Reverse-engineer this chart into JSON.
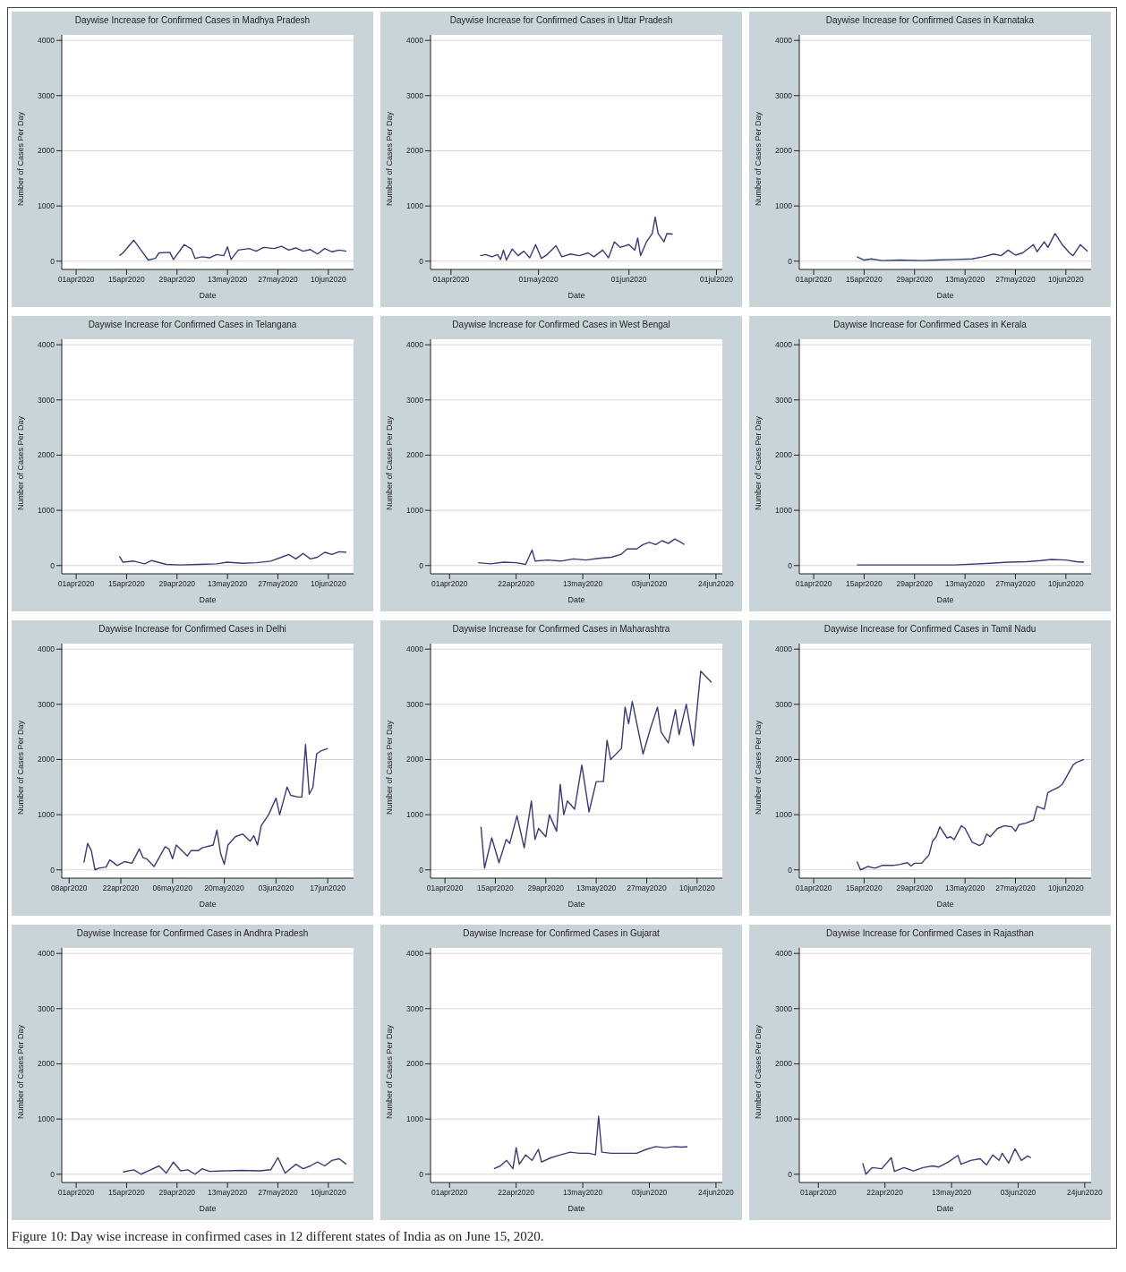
{
  "chart_data": [
    {
      "type": "line",
      "title": "Daywise Increase for Confirmed Cases in Madhya Pradesh",
      "xlabel": "Date",
      "ylabel": "Number of Cases Per Day",
      "color": "#3b3a78",
      "grid": "y",
      "ylim": [
        -150,
        4100
      ],
      "yticks": [
        0,
        1000,
        2000,
        3000,
        4000
      ],
      "xlim": [
        "2020-03-28",
        "2020-06-17"
      ],
      "xticks": [
        {
          "value": "2020-04-01",
          "label": "01apr2020"
        },
        {
          "value": "2020-04-15",
          "label": "15apr2020"
        },
        {
          "value": "2020-04-29",
          "label": "29apr2020"
        },
        {
          "value": "2020-05-13",
          "label": "13may2020"
        },
        {
          "value": "2020-05-27",
          "label": "27may2020"
        },
        {
          "value": "2020-06-10",
          "label": "10jun2020"
        }
      ],
      "x": [
        "2020-04-13",
        "2020-04-14",
        "2020-04-17",
        "2020-04-19",
        "2020-04-21",
        "2020-04-23",
        "2020-04-24",
        "2020-04-27",
        "2020-04-28",
        "2020-05-01",
        "2020-05-03",
        "2020-05-04",
        "2020-05-06",
        "2020-05-08",
        "2020-05-10",
        "2020-05-12",
        "2020-05-13",
        "2020-05-14",
        "2020-05-16",
        "2020-05-19",
        "2020-05-21",
        "2020-05-23",
        "2020-05-26",
        "2020-05-28",
        "2020-05-30",
        "2020-06-01",
        "2020-06-03",
        "2020-06-05",
        "2020-06-07",
        "2020-06-09",
        "2020-06-11",
        "2020-06-13",
        "2020-06-15"
      ],
      "values": [
        100,
        150,
        380,
        200,
        20,
        50,
        150,
        160,
        30,
        300,
        220,
        50,
        80,
        60,
        120,
        100,
        260,
        30,
        200,
        230,
        180,
        250,
        230,
        270,
        200,
        240,
        180,
        210,
        130,
        230,
        170,
        200,
        180
      ]
    },
    {
      "type": "line",
      "title": "Daywise Increase for Confirmed Cases in Uttar Pradesh",
      "xlabel": "Date",
      "ylabel": "Number of Cases Per Day",
      "color": "#3b3a78",
      "grid": "y",
      "ylim": [
        -150,
        4100
      ],
      "yticks": [
        0,
        1000,
        2000,
        3000,
        4000
      ],
      "xlim": [
        "2020-03-25",
        "2020-07-03"
      ],
      "xticks": [
        {
          "value": "2020-04-01",
          "label": "01apr2020"
        },
        {
          "value": "2020-05-01",
          "label": "01may2020"
        },
        {
          "value": "2020-06-01",
          "label": "01jun2020"
        },
        {
          "value": "2020-07-01",
          "label": "01jul2020"
        }
      ],
      "x": [
        "2020-04-11",
        "2020-04-13",
        "2020-04-15",
        "2020-04-17",
        "2020-04-18",
        "2020-04-19",
        "2020-04-20",
        "2020-04-22",
        "2020-04-24",
        "2020-04-26",
        "2020-04-28",
        "2020-04-30",
        "2020-05-02",
        "2020-05-04",
        "2020-05-07",
        "2020-05-09",
        "2020-05-12",
        "2020-05-15",
        "2020-05-18",
        "2020-05-20",
        "2020-05-23",
        "2020-05-25",
        "2020-05-27",
        "2020-05-29",
        "2020-06-01",
        "2020-06-03",
        "2020-06-04",
        "2020-06-05",
        "2020-06-07",
        "2020-06-09",
        "2020-06-10",
        "2020-06-11",
        "2020-06-13",
        "2020-06-14",
        "2020-06-16"
      ],
      "values": [
        100,
        120,
        80,
        120,
        30,
        200,
        20,
        220,
        100,
        180,
        60,
        300,
        50,
        120,
        280,
        80,
        130,
        100,
        150,
        80,
        200,
        60,
        350,
        250,
        300,
        200,
        420,
        100,
        350,
        500,
        800,
        500,
        350,
        500,
        490
      ]
    },
    {
      "type": "line",
      "title": "Daywise Increase for Confirmed Cases in Karnataka",
      "xlabel": "Date",
      "ylabel": "Number of Cases Per Day",
      "color": "#3b3a78",
      "grid": "y",
      "ylim": [
        -150,
        4100
      ],
      "yticks": [
        0,
        1000,
        2000,
        3000,
        4000
      ],
      "xlim": [
        "2020-03-28",
        "2020-06-17"
      ],
      "xticks": [
        {
          "value": "2020-04-01",
          "label": "01apr2020"
        },
        {
          "value": "2020-04-15",
          "label": "15apr2020"
        },
        {
          "value": "2020-04-29",
          "label": "29apr2020"
        },
        {
          "value": "2020-05-13",
          "label": "13may2020"
        },
        {
          "value": "2020-05-27",
          "label": "27may2020"
        },
        {
          "value": "2020-06-10",
          "label": "10jun2020"
        }
      ],
      "x": [
        "2020-04-13",
        "2020-04-15",
        "2020-04-17",
        "2020-04-20",
        "2020-04-25",
        "2020-05-01",
        "2020-05-05",
        "2020-05-10",
        "2020-05-15",
        "2020-05-18",
        "2020-05-21",
        "2020-05-23",
        "2020-05-25",
        "2020-05-27",
        "2020-05-29",
        "2020-06-01",
        "2020-06-02",
        "2020-06-04",
        "2020-06-05",
        "2020-06-07",
        "2020-06-09",
        "2020-06-11",
        "2020-06-12",
        "2020-06-14",
        "2020-06-16"
      ],
      "values": [
        80,
        20,
        40,
        10,
        20,
        10,
        20,
        30,
        40,
        80,
        130,
        100,
        200,
        110,
        150,
        300,
        170,
        350,
        250,
        500,
        300,
        150,
        100,
        300,
        180
      ]
    },
    {
      "type": "line",
      "title": "Daywise Increase for Confirmed Cases in Telangana",
      "xlabel": "Date",
      "ylabel": "Number of Cases Per Day",
      "color": "#3b3a78",
      "grid": "y",
      "ylim": [
        -150,
        4100
      ],
      "yticks": [
        0,
        1000,
        2000,
        3000,
        4000
      ],
      "xlim": [
        "2020-03-28",
        "2020-06-17"
      ],
      "xticks": [
        {
          "value": "2020-04-01",
          "label": "01apr2020"
        },
        {
          "value": "2020-04-15",
          "label": "15apr2020"
        },
        {
          "value": "2020-04-29",
          "label": "29apr2020"
        },
        {
          "value": "2020-05-13",
          "label": "13may2020"
        },
        {
          "value": "2020-05-27",
          "label": "27may2020"
        },
        {
          "value": "2020-06-10",
          "label": "10jun2020"
        }
      ],
      "x": [
        "2020-04-13",
        "2020-04-14",
        "2020-04-17",
        "2020-04-20",
        "2020-04-22",
        "2020-04-26",
        "2020-04-30",
        "2020-05-05",
        "2020-05-10",
        "2020-05-13",
        "2020-05-17",
        "2020-05-21",
        "2020-05-25",
        "2020-05-28",
        "2020-05-30",
        "2020-06-01",
        "2020-06-03",
        "2020-06-05",
        "2020-06-07",
        "2020-06-09",
        "2020-06-11",
        "2020-06-13",
        "2020-06-15"
      ],
      "values": [
        170,
        60,
        80,
        30,
        90,
        20,
        10,
        20,
        30,
        60,
        40,
        50,
        80,
        150,
        200,
        120,
        220,
        120,
        150,
        240,
        200,
        250,
        240
      ]
    },
    {
      "type": "line",
      "title": "Daywise Increase for Confirmed Cases in West Bengal",
      "xlabel": "Date",
      "ylabel": "Number of Cases Per Day",
      "color": "#3b3a78",
      "grid": "y",
      "ylim": [
        -150,
        4100
      ],
      "yticks": [
        0,
        1000,
        2000,
        3000,
        4000
      ],
      "xlim": [
        "2020-03-26",
        "2020-06-26"
      ],
      "xticks": [
        {
          "value": "2020-04-01",
          "label": "01apr2020"
        },
        {
          "value": "2020-04-22",
          "label": "22apr2020"
        },
        {
          "value": "2020-05-13",
          "label": "13may2020"
        },
        {
          "value": "2020-06-03",
          "label": "03jun2020"
        },
        {
          "value": "2020-06-24",
          "label": "24jun2020"
        }
      ],
      "x": [
        "2020-04-10",
        "2020-04-14",
        "2020-04-18",
        "2020-04-22",
        "2020-04-25",
        "2020-04-27",
        "2020-04-28",
        "2020-05-02",
        "2020-05-06",
        "2020-05-10",
        "2020-05-14",
        "2020-05-18",
        "2020-05-22",
        "2020-05-25",
        "2020-05-27",
        "2020-05-30",
        "2020-06-01",
        "2020-06-03",
        "2020-06-05",
        "2020-06-07",
        "2020-06-09",
        "2020-06-11",
        "2020-06-13",
        "2020-06-14"
      ],
      "values": [
        50,
        30,
        60,
        50,
        20,
        280,
        80,
        100,
        80,
        120,
        100,
        130,
        150,
        200,
        300,
        300,
        380,
        420,
        380,
        450,
        400,
        480,
        420,
        380
      ]
    },
    {
      "type": "line",
      "title": "Daywise Increase for Confirmed Cases in Kerala",
      "xlabel": "Date",
      "ylabel": "Number of Cases Per Day",
      "color": "#3b3a78",
      "grid": "y",
      "ylim": [
        -150,
        4100
      ],
      "yticks": [
        0,
        1000,
        2000,
        3000,
        4000
      ],
      "xlim": [
        "2020-03-28",
        "2020-06-17"
      ],
      "xticks": [
        {
          "value": "2020-04-01",
          "label": "01apr2020"
        },
        {
          "value": "2020-04-15",
          "label": "15apr2020"
        },
        {
          "value": "2020-04-29",
          "label": "29apr2020"
        },
        {
          "value": "2020-05-13",
          "label": "13may2020"
        },
        {
          "value": "2020-05-27",
          "label": "27may2020"
        },
        {
          "value": "2020-06-10",
          "label": "10jun2020"
        }
      ],
      "x": [
        "2020-04-13",
        "2020-04-20",
        "2020-04-30",
        "2020-05-10",
        "2020-05-20",
        "2020-05-25",
        "2020-05-30",
        "2020-06-03",
        "2020-06-06",
        "2020-06-10",
        "2020-06-13",
        "2020-06-15"
      ],
      "values": [
        10,
        10,
        10,
        10,
        40,
        60,
        70,
        90,
        110,
        100,
        70,
        60
      ]
    },
    {
      "type": "line",
      "title": "Daywise Increase for Confirmed Cases in Delhi",
      "xlabel": "Date",
      "ylabel": "Number of Cases Per Day",
      "color": "#3b3a78",
      "grid": "y",
      "ylim": [
        -150,
        4100
      ],
      "yticks": [
        0,
        1000,
        2000,
        3000,
        4000
      ],
      "xlim": [
        "2020-04-06",
        "2020-06-24"
      ],
      "xticks": [
        {
          "value": "2020-04-08",
          "label": "08apr2020"
        },
        {
          "value": "2020-04-22",
          "label": "22apr2020"
        },
        {
          "value": "2020-05-06",
          "label": "06may2020"
        },
        {
          "value": "2020-05-20",
          "label": "20may2020"
        },
        {
          "value": "2020-06-03",
          "label": "03jun2020"
        },
        {
          "value": "2020-06-17",
          "label": "17jun2020"
        }
      ],
      "x": [
        "2020-04-12",
        "2020-04-13",
        "2020-04-14",
        "2020-04-15",
        "2020-04-16",
        "2020-04-18",
        "2020-04-19",
        "2020-04-21",
        "2020-04-23",
        "2020-04-25",
        "2020-04-27",
        "2020-04-28",
        "2020-04-29",
        "2020-05-01",
        "2020-05-04",
        "2020-05-05",
        "2020-05-06",
        "2020-05-07",
        "2020-05-10",
        "2020-05-11",
        "2020-05-13",
        "2020-05-14",
        "2020-05-17",
        "2020-05-18",
        "2020-05-19",
        "2020-05-20",
        "2020-05-21",
        "2020-05-23",
        "2020-05-25",
        "2020-05-27",
        "2020-05-28",
        "2020-05-29",
        "2020-05-30",
        "2020-06-01",
        "2020-06-03",
        "2020-06-04",
        "2020-06-06",
        "2020-06-07",
        "2020-06-09",
        "2020-06-10",
        "2020-06-11",
        "2020-06-12",
        "2020-06-13",
        "2020-06-14",
        "2020-06-15",
        "2020-06-17"
      ],
      "values": [
        130,
        480,
        350,
        0,
        30,
        50,
        180,
        80,
        150,
        120,
        380,
        220,
        200,
        60,
        420,
        380,
        200,
        450,
        250,
        350,
        350,
        400,
        450,
        720,
        300,
        100,
        450,
        600,
        650,
        520,
        620,
        450,
        800,
        1000,
        1300,
        1000,
        1500,
        1350,
        1320,
        1320,
        2270,
        1370,
        1500,
        2100,
        2150,
        2200
      ]
    },
    {
      "type": "line",
      "title": "Daywise Increase for Confirmed Cases in Maharashtra",
      "xlabel": "Date",
      "ylabel": "Number of Cases Per Day",
      "color": "#3b3a78",
      "grid": "y",
      "ylim": [
        -150,
        4100
      ],
      "yticks": [
        0,
        1000,
        2000,
        3000,
        4000
      ],
      "xlim": [
        "2020-03-28",
        "2020-06-17"
      ],
      "xticks": [
        {
          "value": "2020-04-01",
          "label": "01apr2020"
        },
        {
          "value": "2020-04-15",
          "label": "15apr2020"
        },
        {
          "value": "2020-04-29",
          "label": "29apr2020"
        },
        {
          "value": "2020-05-13",
          "label": "13may2020"
        },
        {
          "value": "2020-05-27",
          "label": "27may2020"
        },
        {
          "value": "2020-06-10",
          "label": "10jun2020"
        }
      ],
      "x": [
        "2020-04-11",
        "2020-04-12",
        "2020-04-14",
        "2020-04-16",
        "2020-04-18",
        "2020-04-19",
        "2020-04-21",
        "2020-04-23",
        "2020-04-25",
        "2020-04-26",
        "2020-04-27",
        "2020-04-29",
        "2020-04-30",
        "2020-05-02",
        "2020-05-03",
        "2020-05-04",
        "2020-05-05",
        "2020-05-07",
        "2020-05-09",
        "2020-05-11",
        "2020-05-13",
        "2020-05-15",
        "2020-05-16",
        "2020-05-17",
        "2020-05-20",
        "2020-05-21",
        "2020-05-22",
        "2020-05-23",
        "2020-05-26",
        "2020-05-28",
        "2020-05-30",
        "2020-05-31",
        "2020-06-02",
        "2020-06-04",
        "2020-06-05",
        "2020-06-07",
        "2020-06-09",
        "2020-06-11",
        "2020-06-14"
      ],
      "values": [
        780,
        30,
        580,
        130,
        550,
        480,
        980,
        400,
        1250,
        550,
        750,
        600,
        1000,
        700,
        1550,
        1000,
        1250,
        1100,
        1900,
        1050,
        1600,
        1600,
        2350,
        2000,
        2200,
        2950,
        2650,
        3050,
        2100,
        2550,
        2950,
        2500,
        2300,
        2900,
        2450,
        3000,
        2250,
        3600,
        3400
      ]
    },
    {
      "type": "line",
      "title": "Daywise Increase for Confirmed Cases in Tamil Nadu",
      "xlabel": "Date",
      "ylabel": "Number of Cases Per Day",
      "color": "#3b3a78",
      "grid": "y",
      "ylim": [
        -150,
        4100
      ],
      "yticks": [
        0,
        1000,
        2000,
        3000,
        4000
      ],
      "xlim": [
        "2020-03-28",
        "2020-06-17"
      ],
      "xticks": [
        {
          "value": "2020-04-01",
          "label": "01apr2020"
        },
        {
          "value": "2020-04-15",
          "label": "15apr2020"
        },
        {
          "value": "2020-04-29",
          "label": "29apr2020"
        },
        {
          "value": "2020-05-13",
          "label": "13may2020"
        },
        {
          "value": "2020-05-27",
          "label": "27may2020"
        },
        {
          "value": "2020-06-10",
          "label": "10jun2020"
        }
      ],
      "x": [
        "2020-04-13",
        "2020-04-14",
        "2020-04-16",
        "2020-04-18",
        "2020-04-20",
        "2020-04-23",
        "2020-04-25",
        "2020-04-27",
        "2020-04-28",
        "2020-04-29",
        "2020-05-01",
        "2020-05-02",
        "2020-05-03",
        "2020-05-04",
        "2020-05-05",
        "2020-05-06",
        "2020-05-08",
        "2020-05-09",
        "2020-05-10",
        "2020-05-12",
        "2020-05-13",
        "2020-05-15",
        "2020-05-17",
        "2020-05-18",
        "2020-05-19",
        "2020-05-20",
        "2020-05-22",
        "2020-05-24",
        "2020-05-26",
        "2020-05-27",
        "2020-05-28",
        "2020-05-30",
        "2020-06-01",
        "2020-06-02",
        "2020-06-04",
        "2020-06-05",
        "2020-06-08",
        "2020-06-09",
        "2020-06-12",
        "2020-06-13",
        "2020-06-15"
      ],
      "values": [
        150,
        0,
        60,
        30,
        80,
        80,
        100,
        130,
        70,
        120,
        120,
        200,
        270,
        520,
        600,
        780,
        580,
        600,
        550,
        800,
        750,
        500,
        440,
        480,
        650,
        600,
        750,
        800,
        780,
        700,
        820,
        850,
        900,
        1150,
        1100,
        1400,
        1500,
        1550,
        1900,
        1950,
        2000
      ]
    },
    {
      "type": "line",
      "title": "Daywise Increase for Confirmed Cases in Andhra Pradesh",
      "xlabel": "Date",
      "ylabel": "Number of Cases Per Day",
      "color": "#3b3a78",
      "grid": "y",
      "ylim": [
        -150,
        4100
      ],
      "yticks": [
        0,
        1000,
        2000,
        3000,
        4000
      ],
      "xlim": [
        "2020-03-28",
        "2020-06-17"
      ],
      "xticks": [
        {
          "value": "2020-04-01",
          "label": "01apr2020"
        },
        {
          "value": "2020-04-15",
          "label": "15apr2020"
        },
        {
          "value": "2020-04-29",
          "label": "29apr2020"
        },
        {
          "value": "2020-05-13",
          "label": "13may2020"
        },
        {
          "value": "2020-05-27",
          "label": "27may2020"
        },
        {
          "value": "2020-06-10",
          "label": "10jun2020"
        }
      ],
      "x": [
        "2020-04-14",
        "2020-04-17",
        "2020-04-19",
        "2020-04-21",
        "2020-04-24",
        "2020-04-26",
        "2020-04-28",
        "2020-04-30",
        "2020-05-02",
        "2020-05-04",
        "2020-05-06",
        "2020-05-08",
        "2020-05-12",
        "2020-05-17",
        "2020-05-22",
        "2020-05-25",
        "2020-05-27",
        "2020-05-29",
        "2020-06-01",
        "2020-06-03",
        "2020-06-05",
        "2020-06-07",
        "2020-06-09",
        "2020-06-11",
        "2020-06-13",
        "2020-06-15"
      ],
      "values": [
        40,
        80,
        0,
        60,
        150,
        20,
        220,
        60,
        80,
        0,
        100,
        50,
        60,
        70,
        60,
        80,
        300,
        20,
        180,
        100,
        150,
        220,
        150,
        250,
        280,
        180
      ]
    },
    {
      "type": "line",
      "title": "Daywise Increase for Confirmed Cases in Gujarat",
      "xlabel": "Date",
      "ylabel": "Number of Cases Per Day",
      "color": "#3b3a78",
      "grid": "y",
      "ylim": [
        -150,
        4100
      ],
      "yticks": [
        0,
        1000,
        2000,
        3000,
        4000
      ],
      "xlim": [
        "2020-03-26",
        "2020-06-26"
      ],
      "xticks": [
        {
          "value": "2020-04-01",
          "label": "01apr2020"
        },
        {
          "value": "2020-04-22",
          "label": "22apr2020"
        },
        {
          "value": "2020-05-13",
          "label": "13may2020"
        },
        {
          "value": "2020-06-03",
          "label": "03jun2020"
        },
        {
          "value": "2020-06-24",
          "label": "24jun2020"
        }
      ],
      "x": [
        "2020-04-15",
        "2020-04-17",
        "2020-04-19",
        "2020-04-21",
        "2020-04-22",
        "2020-04-23",
        "2020-04-25",
        "2020-04-27",
        "2020-04-29",
        "2020-04-30",
        "2020-05-03",
        "2020-05-06",
        "2020-05-09",
        "2020-05-12",
        "2020-05-15",
        "2020-05-17",
        "2020-05-18",
        "2020-05-19",
        "2020-05-22",
        "2020-05-26",
        "2020-05-30",
        "2020-06-02",
        "2020-06-05",
        "2020-06-08",
        "2020-06-11",
        "2020-06-13",
        "2020-06-15"
      ],
      "values": [
        100,
        150,
        250,
        100,
        480,
        180,
        350,
        250,
        450,
        220,
        300,
        350,
        400,
        380,
        380,
        350,
        1050,
        400,
        380,
        380,
        380,
        450,
        500,
        480,
        500,
        490,
        500
      ]
    },
    {
      "type": "line",
      "title": "Daywise Increase for Confirmed Cases in Rajasthan",
      "xlabel": "Date",
      "ylabel": "Number of Cases Per Day",
      "color": "#3b3a78",
      "grid": "y",
      "ylim": [
        -150,
        4100
      ],
      "yticks": [
        0,
        1000,
        2000,
        3000,
        4000
      ],
      "xlim": [
        "2020-03-26",
        "2020-06-26"
      ],
      "xticks": [
        {
          "value": "2020-04-01",
          "label": "01apr2020"
        },
        {
          "value": "2020-04-22",
          "label": "22apr2020"
        },
        {
          "value": "2020-05-13",
          "label": "13may2020"
        },
        {
          "value": "2020-06-03",
          "label": "03jun2020"
        },
        {
          "value": "2020-06-24",
          "label": "24jun2020"
        }
      ],
      "x": [
        "2020-04-15",
        "2020-04-16",
        "2020-04-18",
        "2020-04-21",
        "2020-04-24",
        "2020-04-25",
        "2020-04-28",
        "2020-05-01",
        "2020-05-04",
        "2020-05-07",
        "2020-05-09",
        "2020-05-12",
        "2020-05-15",
        "2020-05-16",
        "2020-05-19",
        "2020-05-22",
        "2020-05-24",
        "2020-05-26",
        "2020-05-28",
        "2020-05-29",
        "2020-05-31",
        "2020-06-02",
        "2020-06-04",
        "2020-06-06",
        "2020-06-07"
      ],
      "values": [
        200,
        0,
        120,
        100,
        300,
        50,
        120,
        60,
        120,
        150,
        130,
        220,
        340,
        180,
        250,
        280,
        170,
        350,
        250,
        380,
        200,
        460,
        250,
        330,
        300
      ],
      "annotations": [
        "Figure 10: Day wise increase in confirmed cases in 12 different states of India as on June 15, 2020."
      ]
    }
  ]
}
